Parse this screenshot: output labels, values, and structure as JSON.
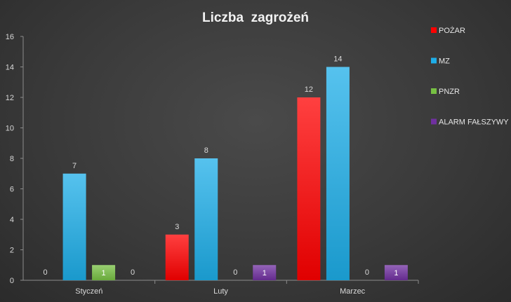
{
  "chart_data": {
    "type": "bar",
    "title": "Liczba  zagrożeń",
    "categories": [
      "Styczeń",
      "Luty",
      "Marzec"
    ],
    "series": [
      {
        "name": "POŻAR",
        "values": [
          0,
          3,
          12
        ],
        "color": "#ff0000"
      },
      {
        "name": "MZ",
        "values": [
          7,
          8,
          14
        ],
        "color": "#1eaee8"
      },
      {
        "name": "PNZR",
        "values": [
          1,
          0,
          0
        ],
        "color": "#77c043"
      },
      {
        "name": "ALARM FAŁSZYWY",
        "values": [
          0,
          1,
          1
        ],
        "color": "#7030a0"
      }
    ],
    "ylim": [
      0,
      16
    ],
    "yticks": [
      0,
      2,
      4,
      6,
      8,
      10,
      12,
      14,
      16
    ],
    "grid": false,
    "legend": "right"
  }
}
